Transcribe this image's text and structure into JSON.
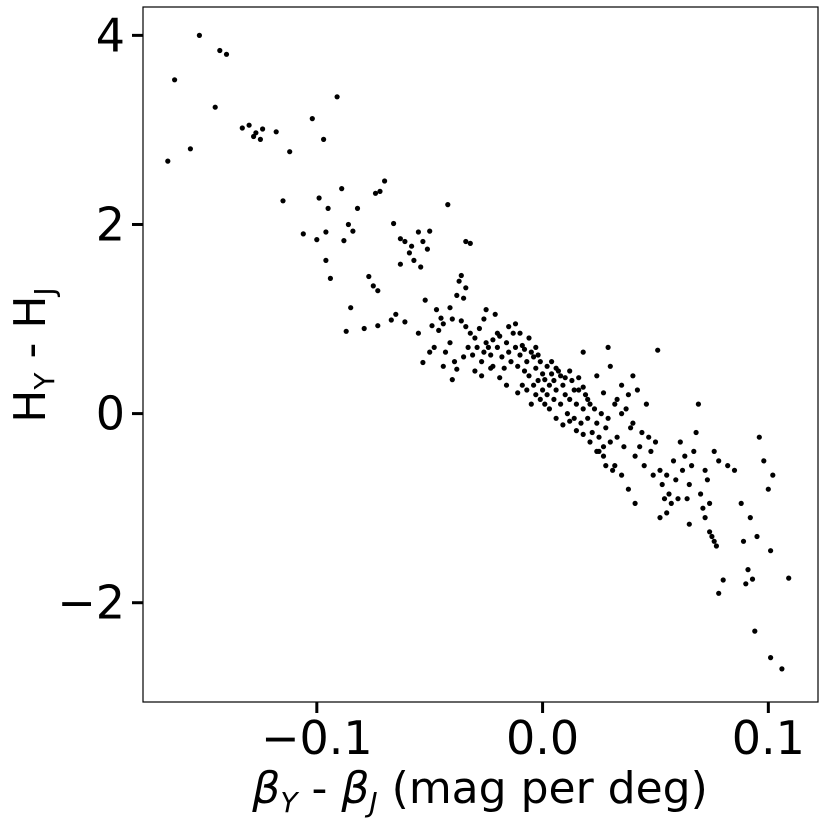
{
  "chart_data": {
    "type": "scatter",
    "title": "",
    "xlabel": "β Y - βJ (mag per deg)",
    "xlabel_parts": {
      "beta1": "β",
      "sub1": "Y",
      "sep": " - ",
      "beta2": "β",
      "sub2": "J",
      "suffix": " (mag per deg)"
    },
    "ylabel_parts": {
      "h1": "H",
      "sub1": "Y",
      "sep": " - ",
      "h2": "H",
      "sub2": "J"
    },
    "xlim": [
      -0.177,
      0.122
    ],
    "ylim": [
      -3.05,
      4.3
    ],
    "xticks": [
      -0.1,
      0.0,
      0.1
    ],
    "xtick_labels": [
      "−0.1",
      "0.0",
      "0.1"
    ],
    "yticks": [
      -2,
      0,
      2,
      4
    ],
    "ytick_labels": [
      "−2",
      "0",
      "2",
      "4"
    ],
    "grid": false,
    "legend": "none",
    "marker_color": "#000000",
    "points": [
      [
        -0.152,
        4.0
      ],
      [
        -0.163,
        3.53
      ],
      [
        -0.143,
        3.84
      ],
      [
        -0.14,
        3.8
      ],
      [
        -0.145,
        3.24
      ],
      [
        -0.091,
        3.35
      ],
      [
        -0.166,
        2.67
      ],
      [
        -0.156,
        2.8
      ],
      [
        -0.133,
        3.02
      ],
      [
        -0.13,
        3.05
      ],
      [
        -0.127,
        2.97
      ],
      [
        -0.124,
        3.01
      ],
      [
        -0.128,
        2.93
      ],
      [
        -0.125,
        2.9
      ],
      [
        -0.118,
        2.98
      ],
      [
        -0.102,
        3.12
      ],
      [
        -0.097,
        2.9
      ],
      [
        -0.112,
        2.77
      ],
      [
        -0.115,
        2.25
      ],
      [
        -0.099,
        2.28
      ],
      [
        -0.095,
        2.17
      ],
      [
        -0.089,
        2.38
      ],
      [
        -0.082,
        2.17
      ],
      [
        -0.072,
        2.35
      ],
      [
        -0.074,
        2.33
      ],
      [
        -0.07,
        2.46
      ],
      [
        -0.106,
        1.9
      ],
      [
        -0.1,
        1.84
      ],
      [
        -0.096,
        1.92
      ],
      [
        -0.088,
        1.83
      ],
      [
        -0.086,
        2.0
      ],
      [
        -0.096,
        1.62
      ],
      [
        -0.094,
        1.43
      ],
      [
        -0.084,
        1.93
      ],
      [
        -0.077,
        1.45
      ],
      [
        -0.075,
        1.35
      ],
      [
        -0.073,
        1.3
      ],
      [
        -0.085,
        1.12
      ],
      [
        -0.087,
        0.87
      ],
      [
        -0.079,
        0.9
      ],
      [
        -0.073,
        0.93
      ],
      [
        -0.067,
        0.99
      ],
      [
        -0.065,
        1.05
      ],
      [
        -0.061,
        0.97
      ],
      [
        -0.066,
        2.01
      ],
      [
        -0.063,
        1.85
      ],
      [
        -0.061,
        1.82
      ],
      [
        -0.058,
        1.77
      ],
      [
        -0.055,
        1.92
      ],
      [
        -0.053,
        1.82
      ],
      [
        -0.059,
        1.7
      ],
      [
        -0.063,
        1.58
      ],
      [
        -0.057,
        1.62
      ],
      [
        -0.054,
        1.55
      ],
      [
        -0.051,
        1.74
      ],
      [
        -0.05,
        1.93
      ],
      [
        -0.042,
        2.21
      ],
      [
        -0.034,
        1.82
      ],
      [
        -0.032,
        1.8
      ],
      [
        -0.037,
        1.4
      ],
      [
        -0.036,
        1.46
      ],
      [
        -0.034,
        1.33
      ],
      [
        -0.038,
        1.25
      ],
      [
        -0.035,
        1.22
      ],
      [
        -0.041,
        1.12
      ],
      [
        -0.045,
        1.01
      ],
      [
        -0.047,
        1.1
      ],
      [
        -0.052,
        1.2
      ],
      [
        -0.055,
        0.85
      ],
      [
        -0.053,
        0.54
      ],
      [
        -0.049,
        0.93
      ],
      [
        -0.046,
        0.88
      ],
      [
        -0.043,
        0.65
      ],
      [
        -0.04,
        0.36
      ],
      [
        -0.038,
        0.47
      ],
      [
        -0.041,
        0.75
      ],
      [
        -0.044,
        0.95
      ],
      [
        -0.04,
        1.0
      ],
      [
        -0.036,
        0.98
      ],
      [
        -0.034,
        0.92
      ],
      [
        -0.032,
        0.85
      ],
      [
        -0.03,
        0.8
      ],
      [
        -0.028,
        0.9
      ],
      [
        -0.026,
        1.0
      ],
      [
        -0.025,
        1.1
      ],
      [
        -0.021,
        1.05
      ],
      [
        -0.033,
        0.7
      ],
      [
        -0.031,
        0.62
      ],
      [
        -0.029,
        0.7
      ],
      [
        -0.027,
        0.55
      ],
      [
        -0.025,
        0.75
      ],
      [
        -0.023,
        0.62
      ],
      [
        -0.022,
        0.5
      ],
      [
        -0.02,
        0.7
      ],
      [
        -0.019,
        0.82
      ],
      [
        -0.018,
        0.6
      ],
      [
        -0.017,
        0.48
      ],
      [
        -0.016,
        0.75
      ],
      [
        -0.015,
        0.65
      ],
      [
        -0.014,
        0.55
      ],
      [
        -0.013,
        0.85
      ],
      [
        -0.012,
        0.7
      ],
      [
        -0.011,
        0.5
      ],
      [
        -0.01,
        0.62
      ],
      [
        -0.009,
        0.72
      ],
      [
        -0.008,
        0.45
      ],
      [
        -0.007,
        0.55
      ],
      [
        -0.006,
        0.4
      ],
      [
        -0.005,
        0.65
      ],
      [
        -0.004,
        0.3
      ],
      [
        -0.003,
        0.48
      ],
      [
        -0.002,
        0.35
      ],
      [
        -0.001,
        0.55
      ],
      [
        0.0,
        0.25
      ],
      [
        0.0,
        0.42
      ],
      [
        0.001,
        0.36
      ],
      [
        0.002,
        0.5
      ],
      [
        0.002,
        0.2
      ],
      [
        0.003,
        0.3
      ],
      [
        0.004,
        0.42
      ],
      [
        0.005,
        0.15
      ],
      [
        0.005,
        0.35
      ],
      [
        0.006,
        0.25
      ],
      [
        0.007,
        0.45
      ],
      [
        0.008,
        0.1
      ],
      [
        0.009,
        0.3
      ],
      [
        0.01,
        0.2
      ],
      [
        0.011,
        0.0
      ],
      [
        0.012,
        0.15
      ],
      [
        0.013,
        0.35
      ],
      [
        0.014,
        -0.05
      ],
      [
        0.015,
        0.1
      ],
      [
        0.016,
        0.25
      ],
      [
        0.017,
        -0.1
      ],
      [
        0.018,
        0.05
      ],
      [
        0.019,
        0.2
      ],
      [
        0.02,
        -0.05
      ],
      [
        0.021,
        0.1
      ],
      [
        0.022,
        -0.2
      ],
      [
        0.023,
        0.05
      ],
      [
        0.024,
        -0.1
      ],
      [
        0.025,
        -0.25
      ],
      [
        0.026,
        0.0
      ],
      [
        0.027,
        -0.35
      ],
      [
        0.028,
        -0.15
      ],
      [
        0.029,
        -0.05
      ],
      [
        0.03,
        -0.3
      ],
      [
        -0.004,
        0.6
      ],
      [
        -0.003,
        0.7
      ],
      [
        -0.002,
        0.62
      ],
      [
        -0.006,
        0.8
      ],
      [
        -0.008,
        0.68
      ],
      [
        -0.01,
        0.85
      ],
      [
        -0.012,
        0.95
      ],
      [
        -0.015,
        0.92
      ],
      [
        -0.02,
        0.85
      ],
      [
        -0.024,
        0.7
      ],
      [
        -0.026,
        0.65
      ],
      [
        -0.022,
        0.78
      ],
      [
        0.004,
        0.55
      ],
      [
        0.006,
        0.48
      ],
      [
        0.008,
        0.4
      ],
      [
        0.01,
        0.38
      ],
      [
        0.012,
        0.45
      ],
      [
        0.014,
        0.25
      ],
      [
        0.016,
        0.38
      ],
      [
        0.018,
        0.28
      ],
      [
        0.02,
        0.15
      ],
      [
        0.003,
        0.05
      ],
      [
        0.001,
        0.1
      ],
      [
        -0.001,
        0.15
      ],
      [
        -0.003,
        0.2
      ],
      [
        -0.005,
        0.1
      ],
      [
        -0.007,
        0.25
      ],
      [
        -0.009,
        0.3
      ],
      [
        -0.011,
        0.22
      ],
      [
        0.006,
        -0.05
      ],
      [
        0.009,
        -0.12
      ],
      [
        0.012,
        -0.08
      ],
      [
        0.015,
        -0.18
      ],
      [
        0.018,
        -0.22
      ],
      [
        0.021,
        -0.3
      ],
      [
        0.024,
        -0.4
      ],
      [
        0.027,
        -0.45
      ],
      [
        0.018,
        0.65
      ],
      [
        0.024,
        0.4
      ],
      [
        0.027,
        0.22
      ],
      [
        0.03,
        0.5
      ],
      [
        0.032,
        0.1
      ],
      [
        0.033,
        -0.25
      ],
      [
        0.035,
        0.0
      ],
      [
        0.036,
        -0.35
      ],
      [
        0.038,
        0.2
      ],
      [
        0.04,
        -0.1
      ],
      [
        0.041,
        -0.45
      ],
      [
        0.042,
        0.25
      ],
      [
        0.044,
        -0.2
      ],
      [
        0.045,
        -0.55
      ],
      [
        0.046,
        0.1
      ],
      [
        0.048,
        -0.4
      ],
      [
        0.029,
        0.7
      ],
      [
        0.051,
        0.67
      ],
      [
        0.04,
        0.4
      ],
      [
        0.032,
        -0.55
      ],
      [
        0.035,
        -0.65
      ],
      [
        0.038,
        -0.8
      ],
      [
        0.041,
        -0.95
      ],
      [
        0.031,
        -0.6
      ],
      [
        0.028,
        -0.55
      ],
      [
        0.025,
        -0.4
      ],
      [
        0.05,
        -0.3
      ],
      [
        0.052,
        -0.6
      ],
      [
        0.053,
        -0.75
      ],
      [
        0.054,
        -0.9
      ],
      [
        0.055,
        -0.65
      ],
      [
        0.056,
        -0.85
      ],
      [
        0.057,
        -0.95
      ],
      [
        0.058,
        -0.5
      ],
      [
        0.059,
        -0.7
      ],
      [
        0.06,
        -0.9
      ],
      [
        0.061,
        -0.3
      ],
      [
        0.062,
        -0.6
      ],
      [
        0.063,
        -0.45
      ],
      [
        0.064,
        -0.9
      ],
      [
        0.065,
        -0.75
      ],
      [
        0.066,
        -0.55
      ],
      [
        0.067,
        -0.4
      ],
      [
        0.068,
        -0.2
      ],
      [
        0.069,
        0.1
      ],
      [
        0.07,
        -0.85
      ],
      [
        0.052,
        -1.1
      ],
      [
        0.055,
        -1.05
      ],
      [
        0.065,
        -1.17
      ],
      [
        0.071,
        -1.0
      ],
      [
        0.072,
        -1.1
      ],
      [
        0.073,
        -0.7
      ],
      [
        0.074,
        -0.95
      ],
      [
        0.075,
        -1.3
      ],
      [
        0.076,
        -1.35
      ],
      [
        0.077,
        -1.4
      ],
      [
        0.076,
        -0.4
      ],
      [
        0.078,
        -0.5
      ],
      [
        0.072,
        -0.6
      ],
      [
        0.074,
        -1.25
      ],
      [
        0.078,
        -1.9
      ],
      [
        0.08,
        -1.76
      ],
      [
        0.088,
        -0.95
      ],
      [
        0.089,
        -1.35
      ],
      [
        0.09,
        -1.8
      ],
      [
        0.091,
        -1.65
      ],
      [
        0.092,
        -1.1
      ],
      [
        0.093,
        -1.75
      ],
      [
        0.094,
        -2.3
      ],
      [
        0.095,
        -1.3
      ],
      [
        0.096,
        -0.25
      ],
      [
        0.098,
        -0.5
      ],
      [
        0.1,
        -0.8
      ],
      [
        0.101,
        -1.45
      ],
      [
        0.102,
        -0.65
      ],
      [
        0.101,
        -2.58
      ],
      [
        0.106,
        -2.7
      ],
      [
        0.109,
        -1.74
      ],
      [
        0.085,
        -0.6
      ],
      [
        0.082,
        -0.55
      ],
      [
        -0.05,
        0.65
      ],
      [
        -0.048,
        0.7
      ],
      [
        -0.044,
        0.5
      ],
      [
        -0.039,
        0.55
      ],
      [
        -0.035,
        0.6
      ],
      [
        -0.03,
        0.45
      ],
      [
        -0.027,
        0.4
      ],
      [
        -0.023,
        0.48
      ],
      [
        -0.019,
        0.38
      ],
      [
        -0.016,
        0.3
      ],
      [
        0.035,
        0.3
      ],
      [
        0.033,
        0.15
      ],
      [
        0.037,
        0.05
      ],
      [
        0.039,
        -0.15
      ],
      [
        0.043,
        -0.35
      ],
      [
        0.047,
        -0.25
      ],
      [
        0.049,
        -0.65
      ]
    ]
  }
}
